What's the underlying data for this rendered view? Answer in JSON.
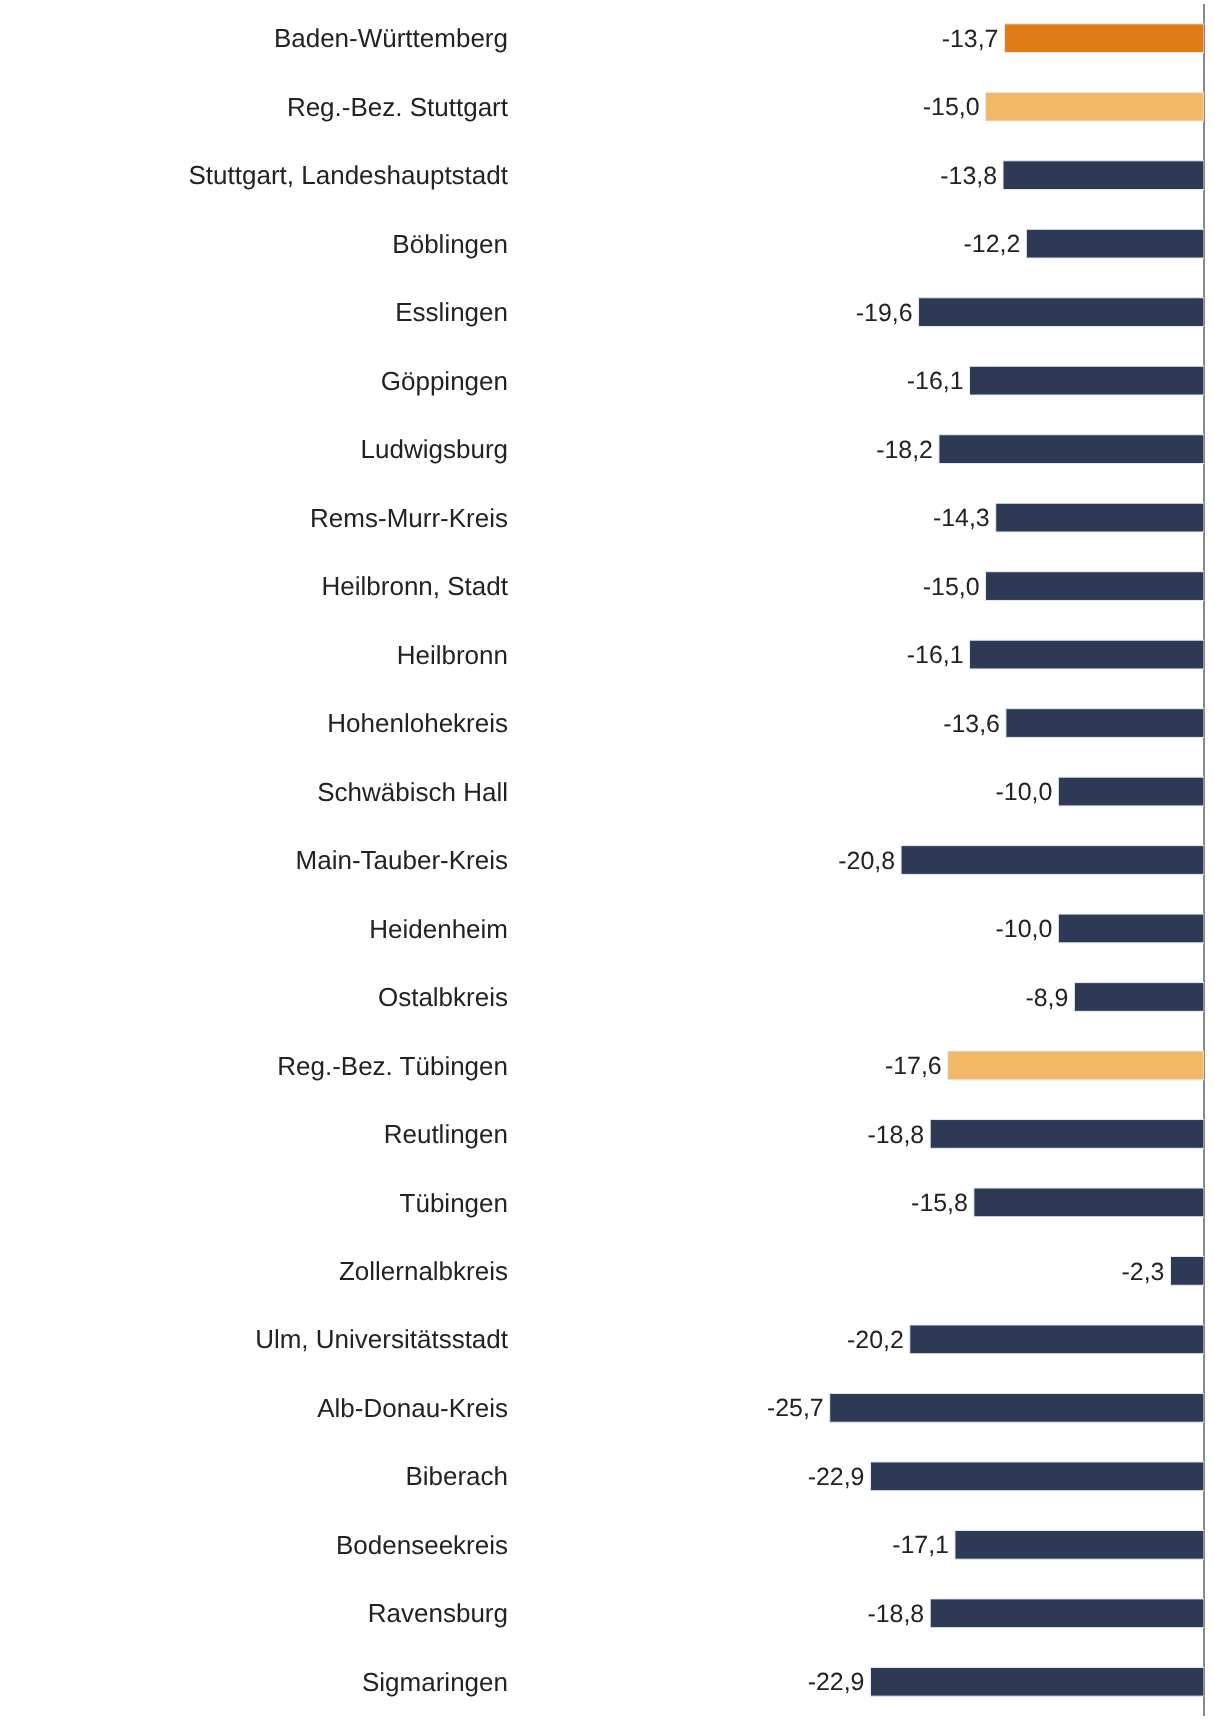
{
  "chart_data": {
    "type": "bar",
    "orientation": "horizontal",
    "categories": [
      "Baden-Württemberg",
      "Reg.-Bez. Stuttgart",
      "Stuttgart, Landeshauptstadt",
      "Böblingen",
      "Esslingen",
      "Göppingen",
      "Ludwigsburg",
      "Rems-Murr-Kreis",
      "Heilbronn, Stadt",
      "Heilbronn",
      "Hohenlohekreis",
      "Schwäbisch Hall",
      "Main-Tauber-Kreis",
      "Heidenheim",
      "Ostalbkreis",
      "Reg.-Bez. Tübingen",
      "Reutlingen",
      "Tübingen",
      "Zollernalbkreis",
      "Ulm, Universitätsstadt",
      "Alb-Donau-Kreis",
      "Biberach",
      "Bodenseekreis",
      "Ravensburg",
      "Sigmaringen"
    ],
    "values": [
      -13.7,
      -15.0,
      -13.8,
      -12.2,
      -19.6,
      -16.1,
      -18.2,
      -14.3,
      -15.0,
      -16.1,
      -13.6,
      -10.0,
      -20.8,
      -10.0,
      -8.9,
      -17.6,
      -18.8,
      -15.8,
      -2.3,
      -20.2,
      -25.7,
      -22.9,
      -17.1,
      -18.8,
      -22.9
    ],
    "value_labels": [
      "-13,7",
      "-15,0",
      "-13,8",
      "-12,2",
      "-19,6",
      "-16,1",
      "-18,2",
      "-14,3",
      "-15,0",
      "-16,1",
      "-13,6",
      "-10,0",
      "-20,8",
      "-10,0",
      "-8,9",
      "-17,6",
      "-18,8",
      "-15,8",
      "-2,3",
      "-20,2",
      "-25,7",
      "-22,9",
      "-17,1",
      "-18,8",
      "-22,9"
    ],
    "colors": [
      "#e07b17",
      "#f2b866",
      "#2e3a55",
      "#2e3a55",
      "#2e3a55",
      "#2e3a55",
      "#2e3a55",
      "#2e3a55",
      "#2e3a55",
      "#2e3a55",
      "#2e3a55",
      "#2e3a55",
      "#2e3a55",
      "#2e3a55",
      "#2e3a55",
      "#f2b866",
      "#2e3a55",
      "#2e3a55",
      "#2e3a55",
      "#2e3a55",
      "#2e3a55",
      "#2e3a55",
      "#2e3a55",
      "#2e3a55",
      "#2e3a55"
    ],
    "tick_labels": "y",
    "legend": false
  }
}
